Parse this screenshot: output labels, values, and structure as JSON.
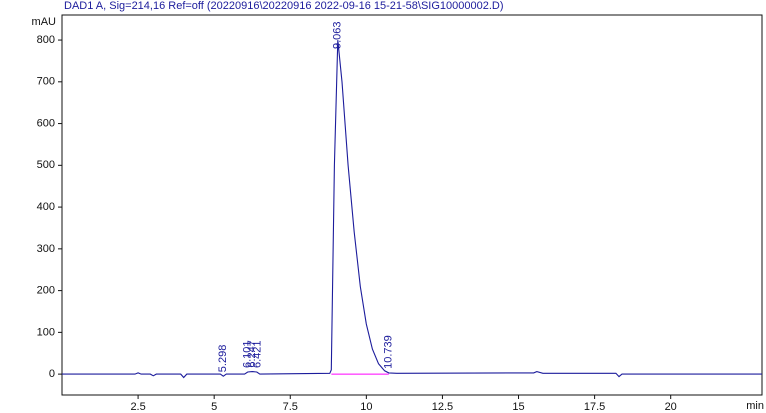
{
  "chart_data": {
    "type": "line",
    "title": "DAD1 A, Sig=214,16 Ref=off (20220916\\20220916 2022-09-16 15-21-58\\SIG10000002.D)",
    "ylabel": "mAU",
    "xlabel": "min",
    "x": [
      0,
      2.4,
      2.5,
      2.6,
      2.9,
      3.0,
      3.1,
      3.9,
      4.0,
      4.1,
      5.2,
      5.3,
      5.4,
      6.0,
      6.1,
      6.25,
      6.4,
      6.5,
      8.8,
      8.85,
      8.95,
      9.063,
      9.2,
      9.4,
      9.6,
      9.8,
      10.0,
      10.2,
      10.4,
      10.6,
      10.739,
      11.0,
      15.5,
      15.6,
      15.8,
      18.2,
      18.3,
      18.4,
      23
    ],
    "y": [
      0,
      0,
      3,
      0,
      0,
      -4,
      0,
      0,
      -8,
      0,
      0,
      -5,
      0,
      0,
      5,
      6,
      5,
      0,
      2,
      10,
      500,
      800,
      700,
      500,
      340,
      210,
      120,
      60,
      25,
      8,
      3,
      2,
      3,
      6,
      2,
      2,
      -6,
      0,
      0
    ],
    "color": "#1c1c9c",
    "integration_baseline": {
      "x": [
        8.85,
        10.739
      ],
      "y": [
        0,
        0
      ],
      "color": "#ff00ff"
    },
    "peaks": [
      5.298,
      6.101,
      6.247,
      6.421,
      9.063,
      10.739
    ],
    "xlim": [
      0,
      23
    ],
    "ylim": [
      -50,
      860
    ],
    "xticks": [
      2.5,
      5,
      7.5,
      10,
      12.5,
      15,
      17.5,
      20
    ],
    "yticks": [
      0,
      100,
      200,
      300,
      400,
      500,
      600,
      700,
      800
    ]
  }
}
